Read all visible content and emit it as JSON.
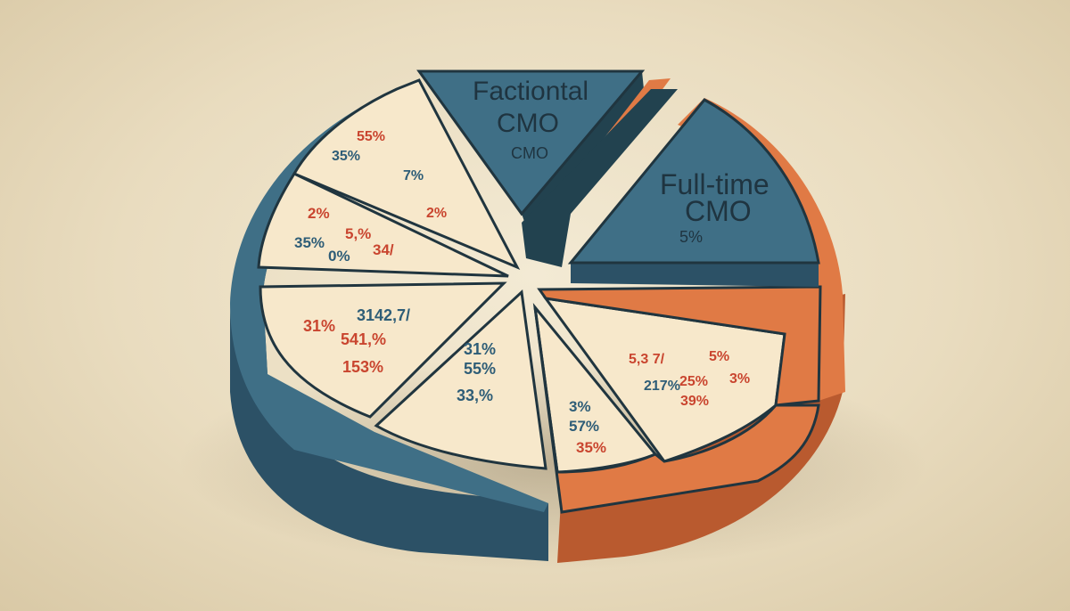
{
  "chart_data": {
    "type": "pie",
    "style": "3d-exploded",
    "colors": {
      "teal": "#3f6f86",
      "teal_side": "#2c5166",
      "teal_dark": "#22424f",
      "orange": "#e07a45",
      "orange_side": "#b95a2f",
      "cream": "#f7e8cb",
      "red_text": "#c9452f",
      "teal_text": "#2e5d77",
      "outline": "#20353f"
    },
    "callouts": [
      {
        "title": "Factiontal",
        "subtitle": "CMO",
        "detail": "CMO"
      },
      {
        "title": "Full-time",
        "subtitle": "CMO",
        "detail": "5%"
      }
    ],
    "slice_labels": [
      {
        "slice": 0,
        "items": [
          {
            "text": "55%",
            "color": "red"
          },
          {
            "text": "35%",
            "color": "teal"
          },
          {
            "text": "7%",
            "color": "teal"
          },
          {
            "text": "2%",
            "color": "red"
          }
        ]
      },
      {
        "slice": 1,
        "items": [
          {
            "text": "2%",
            "color": "red"
          },
          {
            "text": "5,%",
            "color": "red"
          },
          {
            "text": "35%",
            "color": "teal"
          },
          {
            "text": "0%",
            "color": "teal"
          },
          {
            "text": "34/",
            "color": "red"
          }
        ]
      },
      {
        "slice": 2,
        "items": [
          {
            "text": "3142,7/",
            "color": "teal"
          },
          {
            "text": "31%",
            "color": "red"
          },
          {
            "text": "541,%",
            "color": "red"
          },
          {
            "text": "153%",
            "color": "red"
          }
        ]
      },
      {
        "slice": 3,
        "items": [
          {
            "text": "31%",
            "color": "teal"
          },
          {
            "text": "55%",
            "color": "teal"
          },
          {
            "text": "33,%",
            "color": "teal"
          }
        ]
      },
      {
        "slice": 4,
        "items": [
          {
            "text": "3%",
            "color": "teal"
          },
          {
            "text": "57%",
            "color": "teal"
          },
          {
            "text": "35%",
            "color": "red"
          }
        ]
      },
      {
        "slice": 5,
        "items": [
          {
            "text": "5,3 7/",
            "color": "red"
          },
          {
            "text": "217%",
            "color": "teal"
          },
          {
            "text": "25%",
            "color": "red"
          },
          {
            "text": "5%",
            "color": "red"
          },
          {
            "text": "3%",
            "color": "red"
          },
          {
            "text": "39%",
            "color": "red"
          }
        ]
      }
    ]
  }
}
